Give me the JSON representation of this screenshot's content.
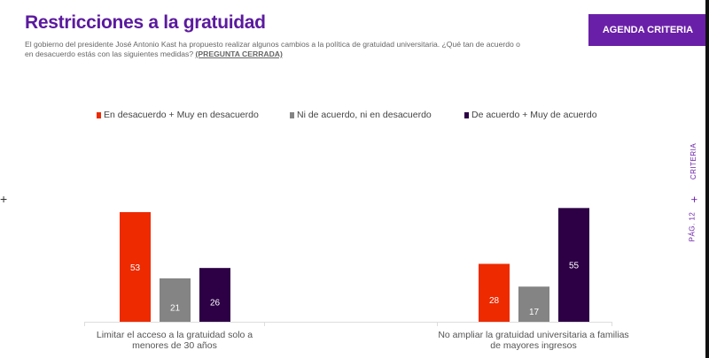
{
  "header": {
    "title": "Restricciones a la gratuidad",
    "subtitle": "El gobierno del presidente José Antonio Kast ha propuesto realizar algunos cambios a la política de gratuidad universitaria. ¿Qué tan de acuerdo o en desacuerdo estás con las siguientes medidas?",
    "subtitle_tag": "(PREGUNTA CERRADA)",
    "badge": "AGENDA CRITERIA"
  },
  "side": {
    "brand": "CRITERIA",
    "separator": "+",
    "page": "PÁG. 12"
  },
  "left_mark": "+",
  "chart_data": {
    "type": "bar",
    "categories": [
      "Limitar el acceso a la gratuidad solo a menores de 30 años",
      "No ampliar la gratuidad universitaria a familias de mayores ingresos"
    ],
    "series": [
      {
        "name": "En desacuerdo + Muy en desacuerdo",
        "color": "#ee2a00",
        "values": [
          53,
          28
        ]
      },
      {
        "name": "Ni de acuerdo, ni en desacuerdo",
        "color": "#848484",
        "values": [
          21,
          17
        ]
      },
      {
        "name": "De acuerdo + Muy de acuerdo",
        "color": "#2d0045",
        "values": [
          26,
          55
        ]
      }
    ],
    "ylim": [
      0,
      60
    ],
    "grid": false,
    "legend": "top",
    "data_labels": true
  }
}
